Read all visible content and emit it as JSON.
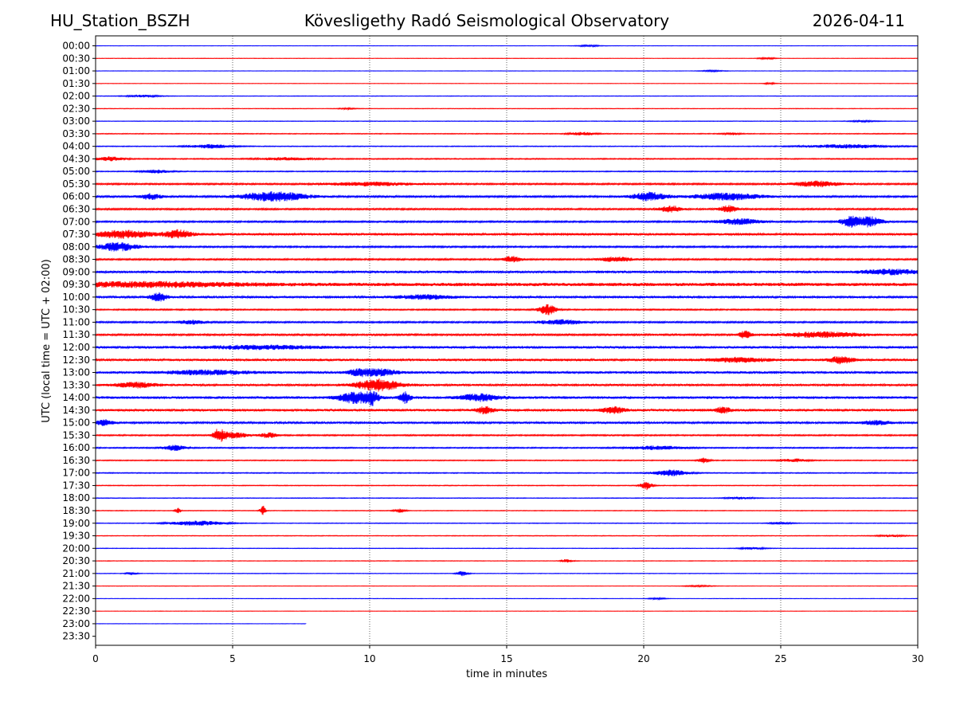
{
  "header": {
    "station": "HU_Station_BSZH",
    "observatory": "Kövesligethy Radó Seismological Observatory",
    "date": "2026-04-11"
  },
  "chart_data": {
    "type": "line",
    "title": "Kövesligethy Radó Seismological Observatory",
    "xlabel": "time in minutes",
    "ylabel": "UTC (local time = UTC + 02:00)",
    "xlim": [
      0,
      30
    ],
    "x_ticks": [
      "0",
      "5",
      "10",
      "15",
      "20",
      "25",
      "30"
    ],
    "grid": "vertical dotted lines at 5, 10, 15, 20, 25",
    "colors": {
      "a": "#0000ff",
      "b": "#ff0000"
    },
    "traces": [
      {
        "label": "00:00",
        "color": "#0000ff",
        "amp": 0.15,
        "end": 30,
        "bursts": [
          [
            18.0,
            0.4,
            0.6
          ]
        ]
      },
      {
        "label": "00:30",
        "color": "#ff0000",
        "amp": 0.15,
        "end": 30,
        "bursts": [
          [
            24.5,
            0.3,
            0.7
          ]
        ]
      },
      {
        "label": "01:00",
        "color": "#0000ff",
        "amp": 0.15,
        "end": 30,
        "bursts": [
          [
            22.5,
            0.4,
            0.5
          ]
        ]
      },
      {
        "label": "01:30",
        "color": "#ff0000",
        "amp": 0.15,
        "end": 30,
        "bursts": [
          [
            24.6,
            0.2,
            0.6
          ]
        ]
      },
      {
        "label": "02:00",
        "color": "#0000ff",
        "amp": 0.2,
        "end": 30,
        "bursts": [
          [
            1.7,
            0.6,
            0.8
          ]
        ]
      },
      {
        "label": "02:30",
        "color": "#ff0000",
        "amp": 0.2,
        "end": 30,
        "bursts": [
          [
            9.2,
            0.3,
            0.5
          ]
        ]
      },
      {
        "label": "03:00",
        "color": "#0000ff",
        "amp": 0.2,
        "end": 30,
        "bursts": [
          [
            28.0,
            0.5,
            0.5
          ]
        ]
      },
      {
        "label": "03:30",
        "color": "#ff0000",
        "amp": 0.3,
        "end": 30,
        "bursts": [
          [
            17.8,
            0.5,
            1.2
          ],
          [
            23.2,
            0.3,
            0.8
          ]
        ]
      },
      {
        "label": "04:00",
        "color": "#0000ff",
        "amp": 0.3,
        "end": 30,
        "bursts": [
          [
            4.2,
            0.8,
            1.5
          ],
          [
            27.5,
            1.5,
            1.5
          ]
        ]
      },
      {
        "label": "04:30",
        "color": "#ff0000",
        "amp": 0.4,
        "end": 30,
        "bursts": [
          [
            0.5,
            0.5,
            1.6
          ],
          [
            7.0,
            1.0,
            1.0
          ]
        ]
      },
      {
        "label": "05:00",
        "color": "#0000ff",
        "amp": 0.35,
        "end": 30,
        "bursts": [
          [
            2.2,
            0.5,
            1.2
          ]
        ]
      },
      {
        "label": "05:30",
        "color": "#ff0000",
        "amp": 0.6,
        "end": 30,
        "bursts": [
          [
            26.3,
            0.8,
            2.2
          ],
          [
            10.0,
            1.5,
            1.3
          ]
        ]
      },
      {
        "label": "06:00",
        "color": "#0000ff",
        "amp": 0.7,
        "end": 30,
        "bursts": [
          [
            6.5,
            1.2,
            3.6
          ],
          [
            2.0,
            0.4,
            2.2
          ],
          [
            20.2,
            0.6,
            3.2
          ],
          [
            23.0,
            1.2,
            2.6
          ]
        ]
      },
      {
        "label": "06:30",
        "color": "#ff0000",
        "amp": 0.6,
        "end": 30,
        "bursts": [
          [
            21.0,
            0.4,
            2.5
          ],
          [
            23.1,
            0.3,
            2.8
          ]
        ]
      },
      {
        "label": "07:00",
        "color": "#0000ff",
        "amp": 0.6,
        "end": 30,
        "bursts": [
          [
            27.6,
            0.4,
            4.2
          ],
          [
            28.3,
            0.4,
            3.8
          ],
          [
            23.5,
            0.8,
            2.2
          ]
        ]
      },
      {
        "label": "07:30",
        "color": "#ff0000",
        "amp": 0.9,
        "end": 30,
        "bursts": [
          [
            1.0,
            1.0,
            2.8
          ],
          [
            3.0,
            0.5,
            3.0
          ]
        ]
      },
      {
        "label": "08:00",
        "color": "#0000ff",
        "amp": 0.6,
        "end": 30,
        "bursts": [
          [
            0.8,
            0.7,
            3.2
          ]
        ]
      },
      {
        "label": "08:30",
        "color": "#ff0000",
        "amp": 0.6,
        "end": 30,
        "bursts": [
          [
            15.2,
            0.3,
            2.4
          ],
          [
            19.0,
            0.6,
            1.8
          ]
        ]
      },
      {
        "label": "09:00",
        "color": "#0000ff",
        "amp": 0.9,
        "end": 30,
        "bursts": [
          [
            29.0,
            1.0,
            1.8
          ]
        ]
      },
      {
        "label": "09:30",
        "color": "#ff0000",
        "amp": 1.3,
        "end": 30,
        "bursts": [
          [
            2.0,
            3.0,
            1.6
          ]
        ]
      },
      {
        "label": "10:00",
        "color": "#0000ff",
        "amp": 0.8,
        "end": 30,
        "bursts": [
          [
            2.3,
            0.3,
            3.2
          ],
          [
            12.0,
            1.0,
            1.5
          ]
        ]
      },
      {
        "label": "10:30",
        "color": "#ff0000",
        "amp": 0.5,
        "end": 30,
        "bursts": [
          [
            16.5,
            0.3,
            4.2
          ]
        ]
      },
      {
        "label": "11:00",
        "color": "#0000ff",
        "amp": 0.6,
        "end": 30,
        "bursts": [
          [
            17.0,
            0.8,
            1.8
          ],
          [
            3.5,
            0.5,
            1.4
          ]
        ]
      },
      {
        "label": "11:30",
        "color": "#ff0000",
        "amp": 0.7,
        "end": 30,
        "bursts": [
          [
            26.5,
            1.5,
            2.0
          ],
          [
            23.7,
            0.2,
            3.2
          ]
        ]
      },
      {
        "label": "12:00",
        "color": "#0000ff",
        "amp": 0.9,
        "end": 30,
        "bursts": [
          [
            6.0,
            2.0,
            1.3
          ]
        ]
      },
      {
        "label": "12:30",
        "color": "#ff0000",
        "amp": 0.9,
        "end": 30,
        "bursts": [
          [
            27.2,
            0.4,
            2.8
          ],
          [
            23.5,
            1.0,
            1.6
          ]
        ]
      },
      {
        "label": "13:00",
        "color": "#0000ff",
        "amp": 0.9,
        "end": 30,
        "bursts": [
          [
            9.7,
            0.5,
            2.6
          ],
          [
            10.5,
            0.5,
            2.2
          ],
          [
            4.0,
            1.5,
            1.5
          ]
        ]
      },
      {
        "label": "13:30",
        "color": "#ff0000",
        "amp": 0.8,
        "end": 30,
        "bursts": [
          [
            10.3,
            0.8,
            4.5
          ],
          [
            1.5,
            0.7,
            2.0
          ]
        ]
      },
      {
        "label": "14:00",
        "color": "#0000ff",
        "amp": 1.0,
        "end": 30,
        "bursts": [
          [
            9.5,
            0.6,
            4.2
          ],
          [
            10.1,
            0.2,
            4.5
          ],
          [
            11.3,
            0.2,
            4.0
          ],
          [
            14.0,
            0.7,
            2.5
          ]
        ]
      },
      {
        "label": "14:30",
        "color": "#ff0000",
        "amp": 0.9,
        "end": 30,
        "bursts": [
          [
            14.2,
            0.3,
            2.6
          ],
          [
            18.9,
            0.4,
            2.4
          ],
          [
            22.9,
            0.3,
            2.0
          ]
        ]
      },
      {
        "label": "15:00",
        "color": "#0000ff",
        "amp": 0.8,
        "end": 30,
        "bursts": [
          [
            0.3,
            0.3,
            2.2
          ],
          [
            28.5,
            0.5,
            1.5
          ]
        ]
      },
      {
        "label": "15:30",
        "color": "#ff0000",
        "amp": 0.5,
        "end": 30,
        "bursts": [
          [
            4.5,
            0.2,
            5.0
          ],
          [
            5.0,
            0.5,
            2.4
          ],
          [
            6.3,
            0.3,
            2.0
          ]
        ]
      },
      {
        "label": "16:00",
        "color": "#0000ff",
        "amp": 0.45,
        "end": 30,
        "bursts": [
          [
            2.9,
            0.4,
            2.0
          ],
          [
            20.5,
            1.0,
            1.4
          ]
        ]
      },
      {
        "label": "16:30",
        "color": "#ff0000",
        "amp": 0.35,
        "end": 30,
        "bursts": [
          [
            22.2,
            0.2,
            2.2
          ],
          [
            25.5,
            0.5,
            1.2
          ]
        ]
      },
      {
        "label": "17:00",
        "color": "#0000ff",
        "amp": 0.35,
        "end": 30,
        "bursts": [
          [
            21.0,
            0.6,
            2.4
          ]
        ]
      },
      {
        "label": "17:30",
        "color": "#ff0000",
        "amp": 0.3,
        "end": 30,
        "bursts": [
          [
            20.1,
            0.2,
            3.5
          ]
        ]
      },
      {
        "label": "18:00",
        "color": "#0000ff",
        "amp": 0.25,
        "end": 30,
        "bursts": [
          [
            23.5,
            0.5,
            0.8
          ]
        ]
      },
      {
        "label": "18:30",
        "color": "#ff0000",
        "amp": 0.25,
        "end": 30,
        "bursts": [
          [
            6.1,
            0.1,
            4.0
          ],
          [
            3.0,
            0.1,
            2.0
          ],
          [
            11.1,
            0.2,
            1.5
          ]
        ]
      },
      {
        "label": "19:00",
        "color": "#0000ff",
        "amp": 0.25,
        "end": 30,
        "bursts": [
          [
            3.7,
            1.0,
            1.8
          ],
          [
            25.0,
            0.4,
            0.8
          ]
        ]
      },
      {
        "label": "19:30",
        "color": "#ff0000",
        "amp": 0.25,
        "end": 30,
        "bursts": [
          [
            29.0,
            0.5,
            0.8
          ]
        ]
      },
      {
        "label": "20:00",
        "color": "#0000ff",
        "amp": 0.2,
        "end": 30,
        "bursts": [
          [
            24.0,
            0.5,
            0.8
          ]
        ]
      },
      {
        "label": "20:30",
        "color": "#ff0000",
        "amp": 0.2,
        "end": 30,
        "bursts": [
          [
            17.2,
            0.2,
            1.2
          ]
        ]
      },
      {
        "label": "21:00",
        "color": "#0000ff",
        "amp": 0.2,
        "end": 30,
        "bursts": [
          [
            13.4,
            0.2,
            2.0
          ],
          [
            1.3,
            0.2,
            1.0
          ]
        ]
      },
      {
        "label": "21:30",
        "color": "#ff0000",
        "amp": 0.15,
        "end": 30,
        "bursts": [
          [
            22.0,
            0.5,
            0.5
          ]
        ]
      },
      {
        "label": "22:00",
        "color": "#0000ff",
        "amp": 0.15,
        "end": 30,
        "bursts": [
          [
            20.5,
            0.3,
            0.6
          ]
        ]
      },
      {
        "label": "22:30",
        "color": "#ff0000",
        "amp": 0.15,
        "end": 30,
        "bursts": []
      },
      {
        "label": "23:00",
        "color": "#0000ff",
        "amp": 0.15,
        "end": 7.7,
        "bursts": []
      },
      {
        "label": "23:30",
        "color": "#ff0000",
        "amp": 0,
        "end": 0,
        "bursts": []
      }
    ]
  }
}
